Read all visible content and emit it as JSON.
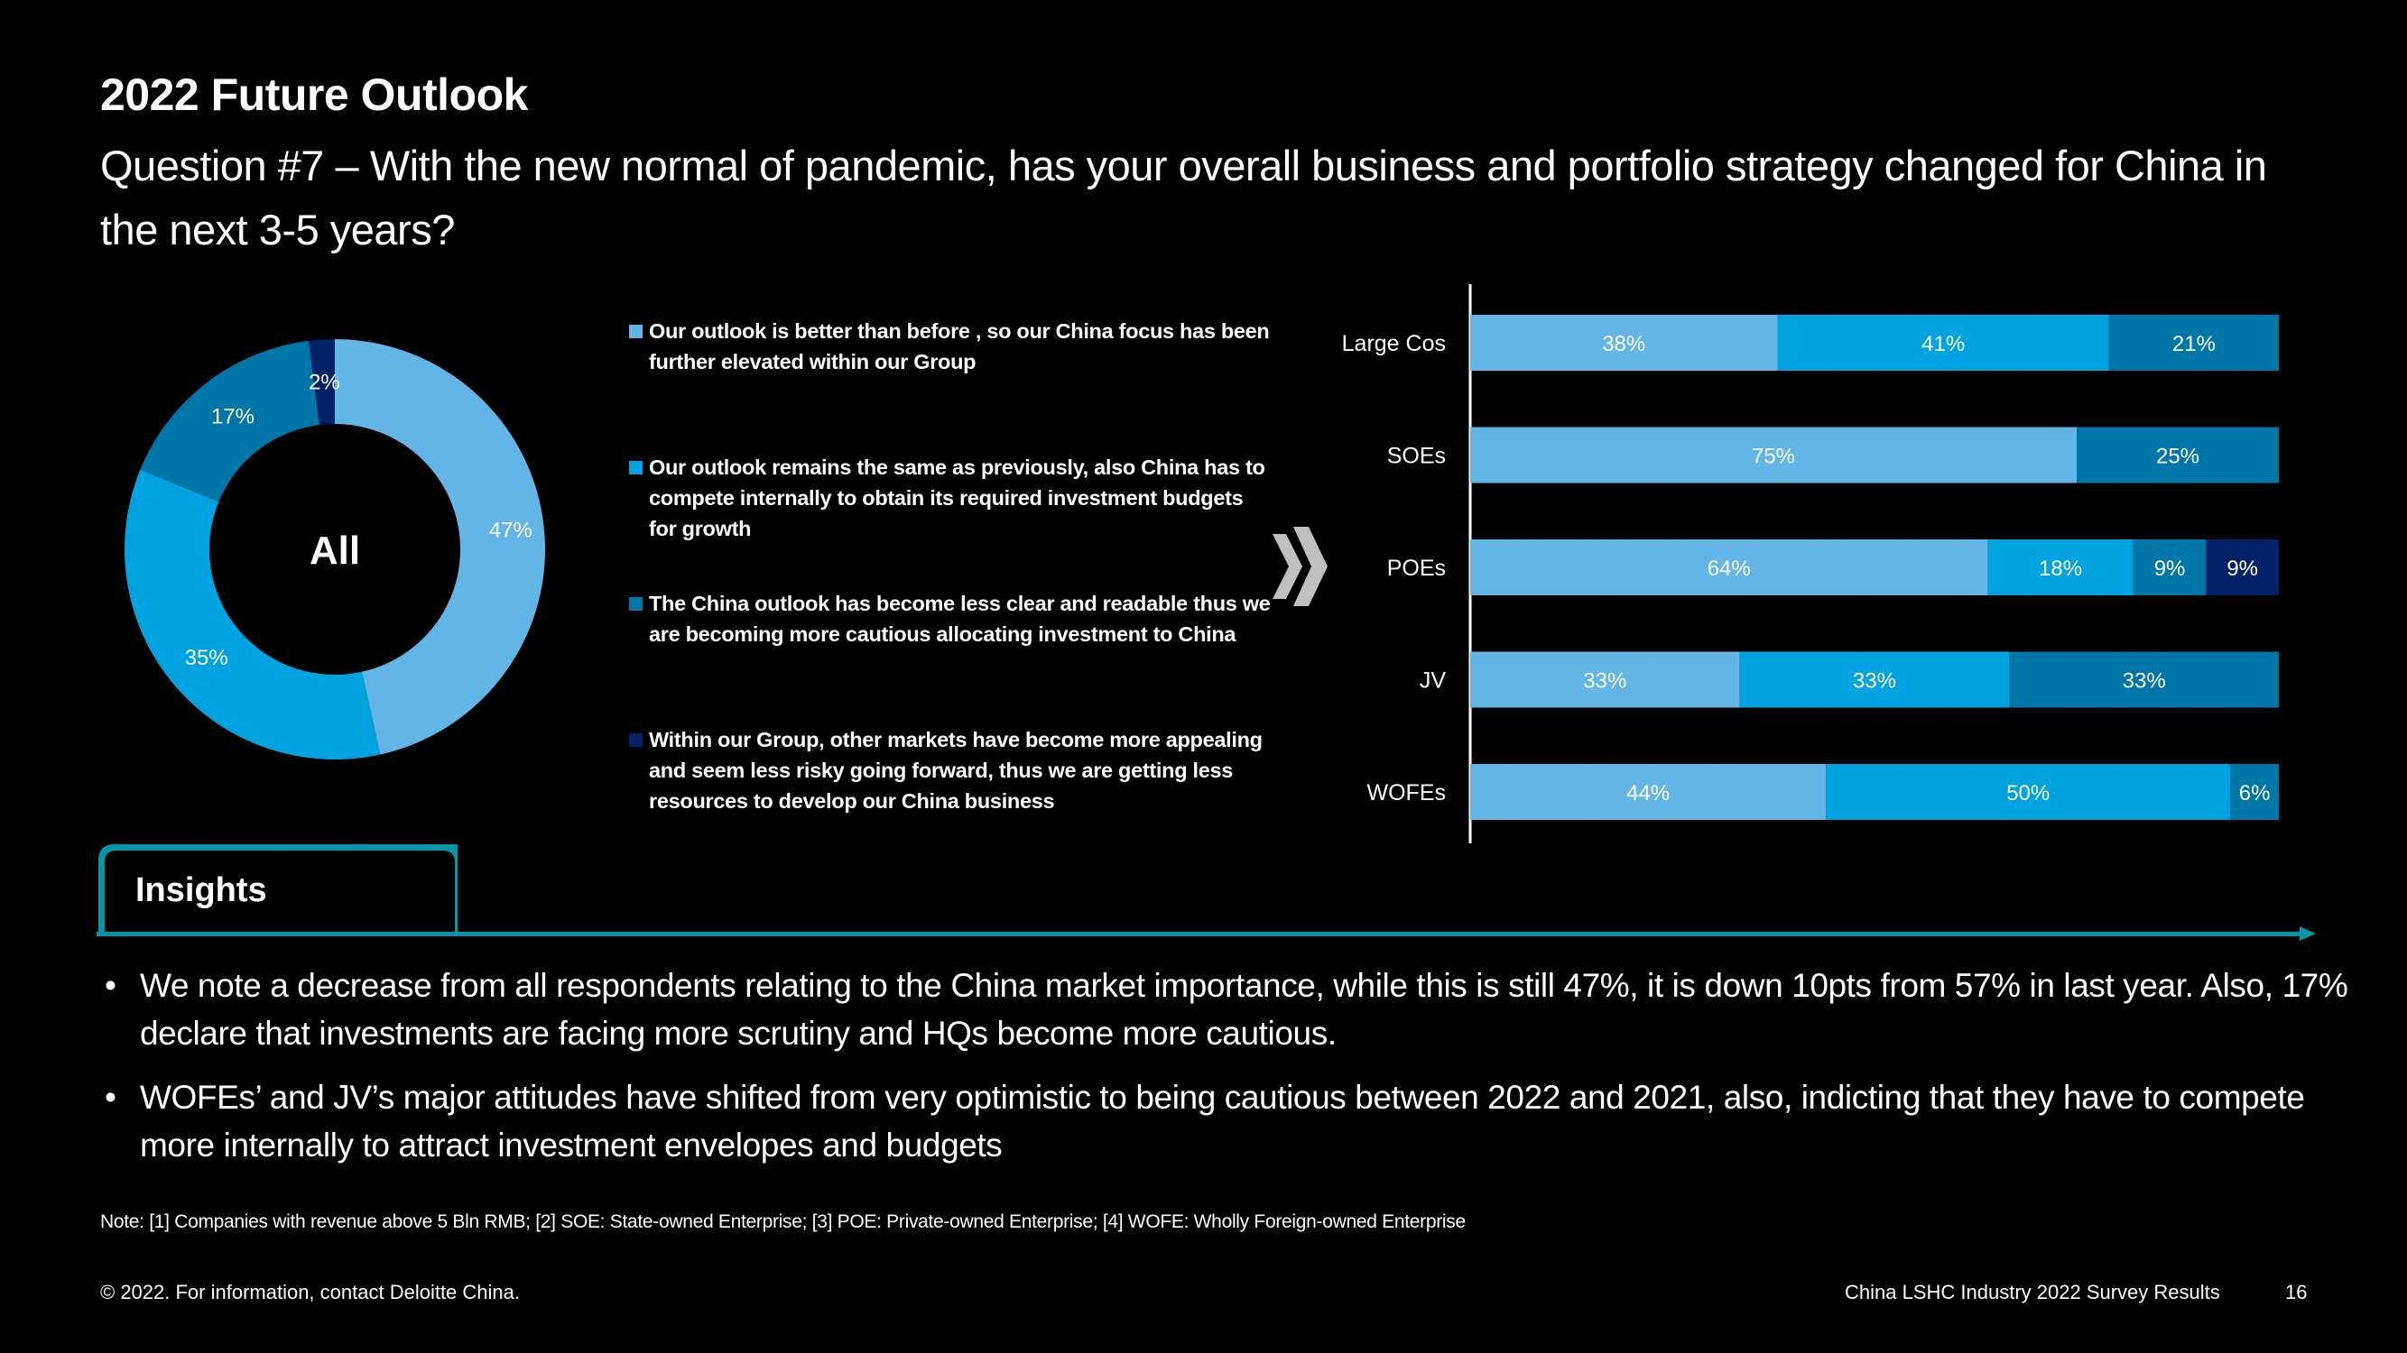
{
  "header": {
    "title": "2022 Future Outlook",
    "question": "Question #7 – With the new normal of pandemic, has your overall business and portfolio strategy changed for China in the next 3-5 years?"
  },
  "colors": {
    "light": "#62B5E5",
    "mid": "#00A3E0",
    "dark": "#0076A8",
    "navy": "#012169",
    "teal": "#0097A9",
    "chevron": "#BFBFBF"
  },
  "legend": [
    {
      "label": "Our outlook is better than before , so our China focus has been further elevated within our Group",
      "color": "#62B5E5"
    },
    {
      "label": "Our outlook remains the same as previously, also China has to compete internally to obtain its required investment budgets for growth",
      "color": "#00A3E0"
    },
    {
      "label": "The China outlook has become less clear and readable thus we are becoming more cautious allocating investment to China",
      "color": "#0076A8"
    },
    {
      "label": "Within our Group, other markets have become more appealing and seem less risky going forward, thus we are getting less resources to develop our China business",
      "color": "#012169"
    }
  ],
  "chart_data": [
    {
      "type": "pie",
      "variant": "donut",
      "center_label": "All",
      "categories": [
        "Outlook better",
        "Outlook same",
        "Less clear / cautious",
        "Other markets more appealing"
      ],
      "values": [
        47,
        35,
        17,
        2
      ],
      "labels": [
        "47%",
        "35%",
        "17%",
        "2%"
      ],
      "colors": [
        "#62B5E5",
        "#00A3E0",
        "#0076A8",
        "#012169"
      ]
    },
    {
      "type": "bar",
      "orientation": "horizontal",
      "stacked": true,
      "categories": [
        "Large Cos",
        "SOEs",
        "POEs",
        "JV",
        "WOFEs"
      ],
      "series": [
        {
          "name": "Outlook better",
          "color": "#62B5E5",
          "values": [
            38,
            75,
            64,
            33,
            44
          ]
        },
        {
          "name": "Outlook same",
          "color": "#00A3E0",
          "values": [
            41,
            0,
            18,
            33,
            50
          ]
        },
        {
          "name": "Less clear / cautious",
          "color": "#0076A8",
          "values": [
            21,
            25,
            9,
            33,
            6
          ]
        },
        {
          "name": "Other markets more appealing",
          "color": "#012169",
          "values": [
            0,
            0,
            9,
            0,
            0
          ]
        }
      ],
      "xlim": [
        0,
        100
      ],
      "grid": false
    }
  ],
  "insights": {
    "title": "Insights",
    "bullets": [
      "We note a decrease from all respondents relating to the China market importance, while this is still 47%, it is down 10pts from 57% in last year. Also, 17% declare that investments are facing more scrutiny and HQs become more cautious.",
      "WOFEs’ and JV’s major attitudes have shifted from very optimistic to being cautious between 2022 and 2021, also, indicting that they have to compete more internally to attract investment envelopes and budgets"
    ]
  },
  "note": "Note: [1] Companies with revenue above 5 Bln RMB; [2] SOE: State-owned Enterprise; [3] POE: Private-owned Enterprise; [4] WOFE: Wholly Foreign-owned Enterprise",
  "footer": {
    "copyright": "© 2022. For information, contact Deloitte China.",
    "report_name": "China LSHC Industry 2022 Survey Results",
    "page_number": "16"
  }
}
